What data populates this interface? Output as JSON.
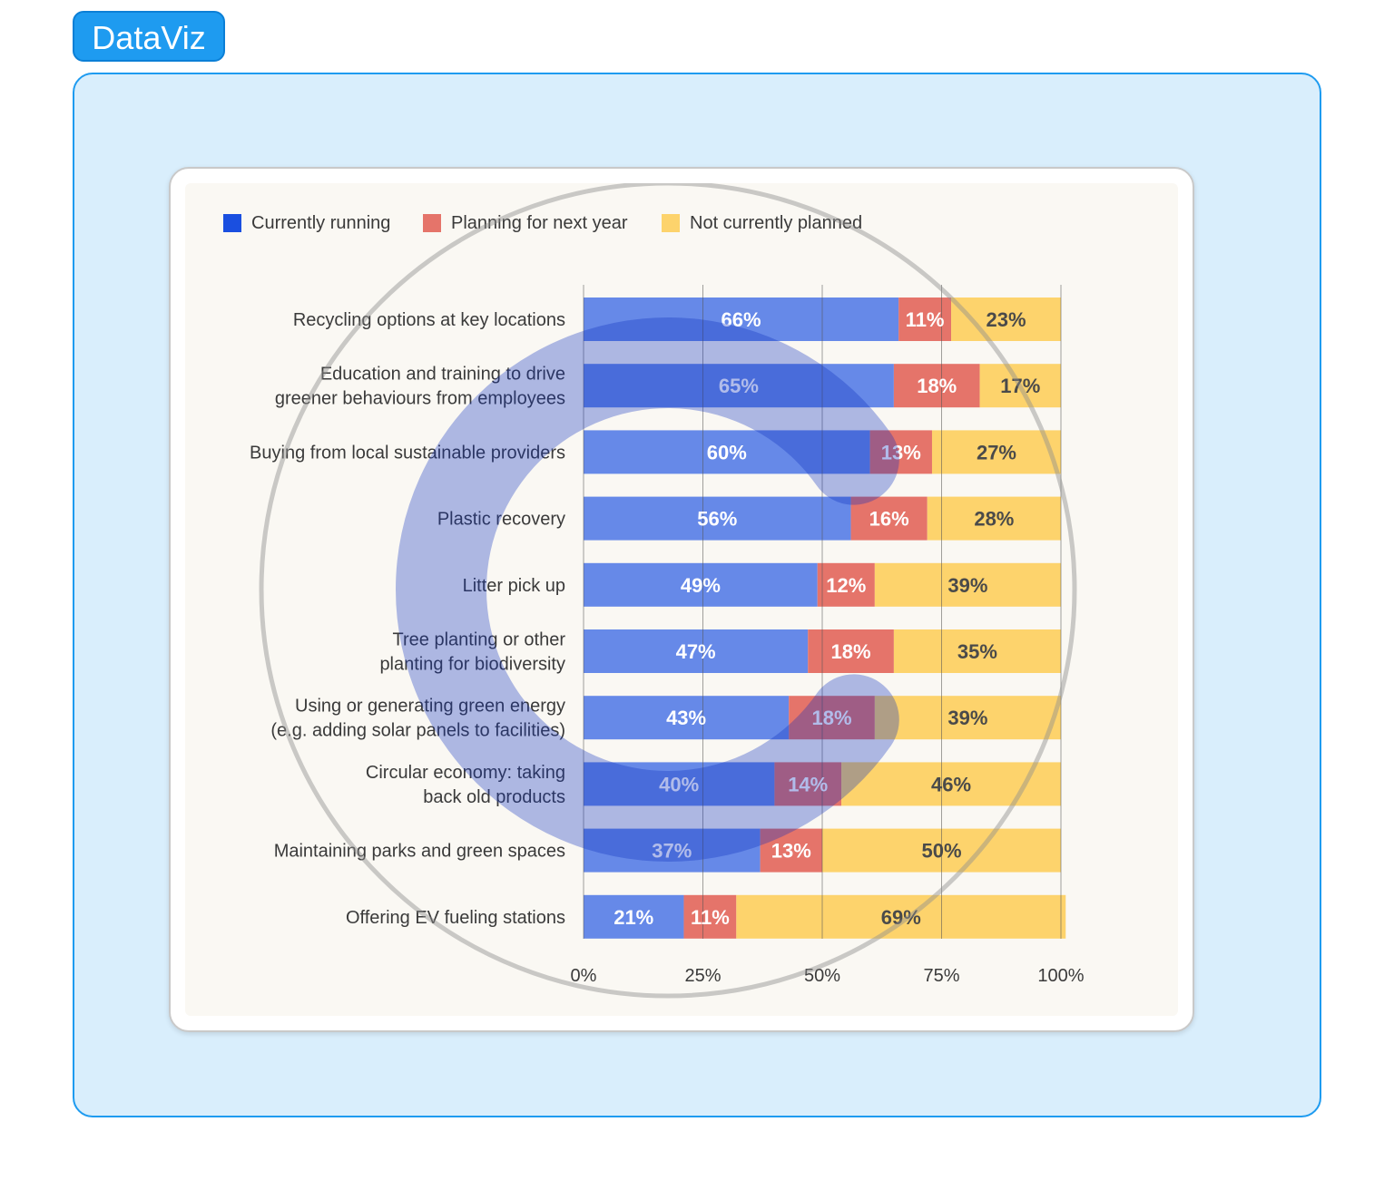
{
  "badge": {
    "label": "DataViz"
  },
  "colors": {
    "panel_bg": "#d9eefc",
    "panel_border": "#1e9bf0",
    "badge_bg": "#1e9bf0",
    "chart_bg": "#faf8f3",
    "grid": "#555555",
    "watermark": "#0b2fbf"
  },
  "chart_data": {
    "type": "bar",
    "orientation": "horizontal",
    "stacked": true,
    "categories": [
      [
        "Recycling options at key locations"
      ],
      [
        "Education and training to drive",
        "greener behaviours from employees"
      ],
      [
        "Buying from local sustainable providers"
      ],
      [
        "Plastic recovery"
      ],
      [
        "Litter pick up"
      ],
      [
        "Tree planting or other",
        "planting for biodiversity"
      ],
      [
        "Using or generating green energy",
        "(e.g. adding solar panels to facilities)"
      ],
      [
        "Circular economy: taking",
        "back old products"
      ],
      [
        "Maintaining parks and green spaces"
      ],
      [
        "Offering EV fueling stations"
      ]
    ],
    "series": [
      {
        "name": "Currently running",
        "color": "#6689e8",
        "legend_color": "#1a4fe0",
        "label_color": "#ffffff",
        "values": [
          66,
          65,
          60,
          56,
          49,
          47,
          43,
          40,
          37,
          21
        ]
      },
      {
        "name": "Planning for next year",
        "color": "#e5746a",
        "legend_color": "#e5746a",
        "label_color": "#ffffff",
        "values": [
          11,
          18,
          13,
          16,
          12,
          18,
          18,
          14,
          13,
          11
        ]
      },
      {
        "name": "Not currently planned",
        "color": "#fdd36c",
        "legend_color": "#fdd36c",
        "label_color": "#4a4a4a",
        "values": [
          23,
          17,
          27,
          28,
          39,
          35,
          39,
          46,
          50,
          69
        ]
      }
    ],
    "value_suffix": "%",
    "xlim": [
      0,
      100
    ],
    "xticks": [
      0,
      25,
      50,
      75,
      100
    ],
    "xtick_labels": [
      "0%",
      "25%",
      "50%",
      "75%",
      "100%"
    ],
    "grid": true,
    "legend_position": "top-left"
  }
}
